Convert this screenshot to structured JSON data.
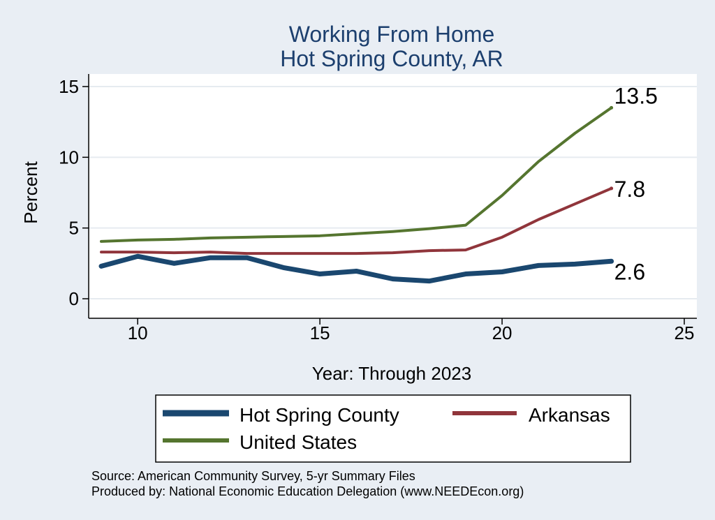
{
  "chart_data": {
    "type": "line",
    "title": "Working From Home",
    "subtitle": "Hot Spring County, AR",
    "xlabel": "Year: Through 2023",
    "ylabel": "Percent",
    "xlim": [
      9,
      25
    ],
    "ylim": [
      0,
      15
    ],
    "x_ticks": [
      "10",
      "15",
      "20",
      "25"
    ],
    "y_ticks": [
      "0",
      "5",
      "10",
      "15"
    ],
    "grid": true,
    "legend_position": "bottom",
    "x": [
      9,
      10,
      11,
      12,
      13,
      14,
      15,
      16,
      17,
      18,
      19,
      20,
      21,
      22,
      23
    ],
    "series": [
      {
        "name": "Hot Spring County",
        "color": "#1a476f",
        "values": [
          2.3,
          3.0,
          2.5,
          2.9,
          2.9,
          2.2,
          1.75,
          1.95,
          1.4,
          1.25,
          1.75,
          1.9,
          2.35,
          2.45,
          2.65
        ],
        "end_label": "2.6"
      },
      {
        "name": "Arkansas",
        "color": "#90353b",
        "values": [
          3.3,
          3.3,
          3.25,
          3.3,
          3.2,
          3.2,
          3.2,
          3.2,
          3.25,
          3.4,
          3.45,
          4.35,
          5.6,
          6.7,
          7.8
        ],
        "end_label": "7.8"
      },
      {
        "name": "United States",
        "color": "#55752f",
        "values": [
          4.05,
          4.15,
          4.2,
          4.3,
          4.35,
          4.4,
          4.45,
          4.6,
          4.75,
          4.95,
          5.2,
          7.3,
          9.7,
          11.7,
          13.5
        ],
        "end_label": "13.5"
      }
    ]
  },
  "source_lines": [
    "Source: American Community Survey, 5-yr Summary Files",
    "Produced by: National Economic Education Delegation (www.NEEDEcon.org)"
  ]
}
